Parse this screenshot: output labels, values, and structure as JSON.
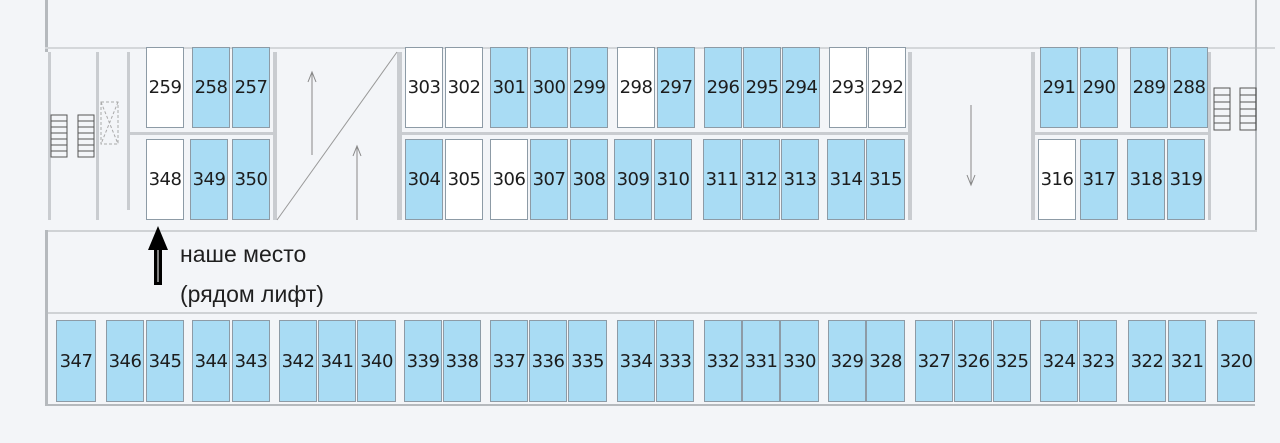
{
  "colors": {
    "occupied_blue": "#a9dcf4",
    "free_white": "#ffffff",
    "background": "#f3f5f8",
    "arrow": "#000000"
  },
  "annotation": {
    "line1": "наше место",
    "line2": "(рядом лифт)",
    "icon": "arrow-up-icon"
  },
  "spots": {
    "top_row": [
      {
        "n": "259",
        "c": "white"
      },
      {
        "n": "258",
        "c": "blue"
      },
      {
        "n": "257",
        "c": "blue"
      },
      {
        "n": "303",
        "c": "white"
      },
      {
        "n": "302",
        "c": "white"
      },
      {
        "n": "301",
        "c": "blue"
      },
      {
        "n": "300",
        "c": "blue"
      },
      {
        "n": "299",
        "c": "blue"
      },
      {
        "n": "298",
        "c": "white"
      },
      {
        "n": "297",
        "c": "blue"
      },
      {
        "n": "296",
        "c": "blue"
      },
      {
        "n": "295",
        "c": "blue"
      },
      {
        "n": "294",
        "c": "blue"
      },
      {
        "n": "293",
        "c": "white"
      },
      {
        "n": "292",
        "c": "white"
      },
      {
        "n": "291",
        "c": "blue"
      },
      {
        "n": "290",
        "c": "blue"
      },
      {
        "n": "289",
        "c": "blue"
      },
      {
        "n": "288",
        "c": "blue"
      }
    ],
    "middle_row": [
      {
        "n": "348",
        "c": "white"
      },
      {
        "n": "349",
        "c": "blue"
      },
      {
        "n": "350",
        "c": "blue"
      },
      {
        "n": "304",
        "c": "blue"
      },
      {
        "n": "305",
        "c": "white"
      },
      {
        "n": "306",
        "c": "white"
      },
      {
        "n": "307",
        "c": "blue"
      },
      {
        "n": "308",
        "c": "blue"
      },
      {
        "n": "309",
        "c": "blue"
      },
      {
        "n": "310",
        "c": "blue"
      },
      {
        "n": "311",
        "c": "blue"
      },
      {
        "n": "312",
        "c": "blue"
      },
      {
        "n": "313",
        "c": "blue"
      },
      {
        "n": "314",
        "c": "blue"
      },
      {
        "n": "315",
        "c": "blue"
      },
      {
        "n": "316",
        "c": "white"
      },
      {
        "n": "317",
        "c": "blue"
      },
      {
        "n": "318",
        "c": "blue"
      },
      {
        "n": "319",
        "c": "blue"
      }
    ],
    "bottom_row": [
      {
        "n": "347",
        "c": "blue"
      },
      {
        "n": "346",
        "c": "blue"
      },
      {
        "n": "345",
        "c": "blue"
      },
      {
        "n": "344",
        "c": "blue"
      },
      {
        "n": "343",
        "c": "blue"
      },
      {
        "n": "342",
        "c": "blue"
      },
      {
        "n": "341",
        "c": "blue"
      },
      {
        "n": "340",
        "c": "blue"
      },
      {
        "n": "339",
        "c": "blue"
      },
      {
        "n": "338",
        "c": "blue"
      },
      {
        "n": "337",
        "c": "blue"
      },
      {
        "n": "336",
        "c": "blue"
      },
      {
        "n": "335",
        "c": "blue"
      },
      {
        "n": "334",
        "c": "blue"
      },
      {
        "n": "333",
        "c": "blue"
      },
      {
        "n": "332",
        "c": "blue"
      },
      {
        "n": "331",
        "c": "blue"
      },
      {
        "n": "330",
        "c": "blue"
      },
      {
        "n": "329",
        "c": "blue"
      },
      {
        "n": "328",
        "c": "blue"
      },
      {
        "n": "327",
        "c": "blue"
      },
      {
        "n": "326",
        "c": "blue"
      },
      {
        "n": "325",
        "c": "blue"
      },
      {
        "n": "324",
        "c": "blue"
      },
      {
        "n": "323",
        "c": "blue"
      },
      {
        "n": "322",
        "c": "blue"
      },
      {
        "n": "321",
        "c": "blue"
      },
      {
        "n": "320",
        "c": "blue"
      }
    ]
  }
}
